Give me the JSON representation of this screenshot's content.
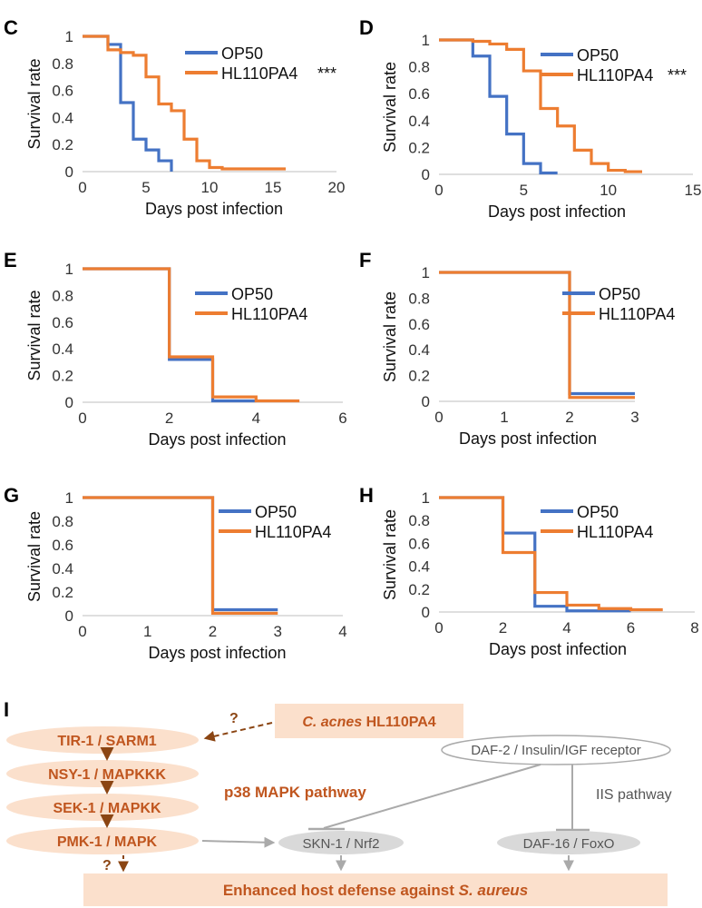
{
  "colors": {
    "OP50": "#4472c4",
    "HL110PA4": "#ed7d31",
    "pathway_fill": "#fbe0cc",
    "pathway_text": "#c0561f",
    "arrow": "#8b4513",
    "iis_gray": "#aaaaaa"
  },
  "chart_data": [
    {
      "panel": "C",
      "type": "line",
      "step": true,
      "xlabel": "Days post infection",
      "ylabel": "Survival rate",
      "xlim": [
        0,
        20
      ],
      "xticks": [
        "0",
        "5",
        "10",
        "15",
        "20"
      ],
      "ylim": [
        0,
        1
      ],
      "yticks": [
        "0",
        "0.2",
        "0.4",
        "0.6",
        "0.8",
        "1"
      ],
      "legend": "top-right",
      "significance": "***",
      "series": [
        {
          "name": "OP50",
          "x": [
            0,
            2,
            3,
            4,
            5,
            6,
            7
          ],
          "y": [
            1,
            0.94,
            0.51,
            0.24,
            0.16,
            0.08,
            0
          ]
        },
        {
          "name": "HL110PA4",
          "x": [
            0,
            2,
            3,
            4,
            5,
            6,
            7,
            8,
            9,
            10,
            11,
            16
          ],
          "y": [
            1,
            0.9,
            0.88,
            0.86,
            0.7,
            0.5,
            0.45,
            0.24,
            0.08,
            0.03,
            0.02,
            0.02
          ]
        }
      ]
    },
    {
      "panel": "D",
      "type": "line",
      "step": true,
      "xlabel": "Days post infection",
      "ylabel": "Survival rate",
      "xlim": [
        0,
        15
      ],
      "xticks": [
        "0",
        "5",
        "10",
        "15"
      ],
      "ylim": [
        0,
        1
      ],
      "yticks": [
        "0",
        "0.2",
        "0.4",
        "0.6",
        "0.8",
        "1"
      ],
      "legend": "top-right",
      "significance": "***",
      "series": [
        {
          "name": "OP50",
          "x": [
            0,
            2,
            3,
            4,
            5,
            6,
            7
          ],
          "y": [
            1,
            0.88,
            0.58,
            0.3,
            0.08,
            0.01,
            0.01
          ]
        },
        {
          "name": "HL110PA4",
          "x": [
            0,
            2,
            3,
            4,
            5,
            6,
            7,
            8,
            9,
            10,
            11,
            12
          ],
          "y": [
            1,
            0.99,
            0.97,
            0.93,
            0.77,
            0.49,
            0.36,
            0.18,
            0.08,
            0.03,
            0.02,
            0.02
          ]
        }
      ]
    },
    {
      "panel": "E",
      "type": "line",
      "step": true,
      "xlabel": "Days post infection",
      "ylabel": "Survival rate",
      "xlim": [
        0,
        6
      ],
      "xticks": [
        "0",
        "2",
        "4",
        "6"
      ],
      "ylim": [
        0,
        1
      ],
      "yticks": [
        "0",
        "0.2",
        "0.4",
        "0.6",
        "0.8",
        "1"
      ],
      "legend": "top-right",
      "series": [
        {
          "name": "OP50",
          "x": [
            0,
            2,
            3,
            4
          ],
          "y": [
            1,
            0.32,
            0.01,
            0.01
          ]
        },
        {
          "name": "HL110PA4",
          "x": [
            0,
            2,
            3,
            4,
            5
          ],
          "y": [
            1,
            0.34,
            0.04,
            0.01,
            0.01
          ]
        }
      ]
    },
    {
      "panel": "F",
      "type": "line",
      "step": true,
      "xlabel": "Days post infection",
      "ylabel": "Survival rate",
      "xlim": [
        0,
        3
      ],
      "xticks": [
        "0",
        "1",
        "2",
        "3"
      ],
      "ylim": [
        0,
        1
      ],
      "yticks": [
        "0",
        "0.2",
        "0.4",
        "0.6",
        "0.8",
        "1"
      ],
      "legend": "top-right",
      "series": [
        {
          "name": "OP50",
          "x": [
            0,
            2,
            3
          ],
          "y": [
            1,
            0.06,
            0.06
          ]
        },
        {
          "name": "HL110PA4",
          "x": [
            0,
            2,
            3
          ],
          "y": [
            1,
            0.03,
            0.03
          ]
        }
      ]
    },
    {
      "panel": "G",
      "type": "line",
      "step": true,
      "xlabel": "Days post infection",
      "ylabel": "Survival rate",
      "xlim": [
        0,
        4
      ],
      "xticks": [
        "0",
        "1",
        "2",
        "3",
        "4"
      ],
      "ylim": [
        0,
        1
      ],
      "yticks": [
        "0",
        "0.2",
        "0.4",
        "0.6",
        "0.8",
        "1"
      ],
      "legend": "top-right",
      "series": [
        {
          "name": "OP50",
          "x": [
            0,
            2,
            3
          ],
          "y": [
            1,
            0.05,
            0.05
          ]
        },
        {
          "name": "HL110PA4",
          "x": [
            0,
            2,
            3
          ],
          "y": [
            1,
            0.02,
            0.02
          ]
        }
      ]
    },
    {
      "panel": "H",
      "type": "line",
      "step": true,
      "xlabel": "Days post infection",
      "ylabel": "Survival rate",
      "xlim": [
        0,
        8
      ],
      "xticks": [
        "0",
        "2",
        "4",
        "6",
        "8"
      ],
      "ylim": [
        0,
        1
      ],
      "yticks": [
        "0",
        "0.2",
        "0.4",
        "0.6",
        "0.8",
        "1"
      ],
      "legend": "top-right",
      "series": [
        {
          "name": "OP50",
          "x": [
            0,
            2,
            3,
            4,
            6
          ],
          "y": [
            1,
            0.69,
            0.05,
            0.01,
            0.01
          ]
        },
        {
          "name": "HL110PA4",
          "x": [
            0,
            2,
            3,
            4,
            5,
            6,
            7
          ],
          "y": [
            1,
            0.52,
            0.17,
            0.06,
            0.03,
            0.02,
            0.02
          ]
        }
      ]
    }
  ],
  "diagram": {
    "panel": "I",
    "source_prefix": "C. acnes",
    "source_suffix": " HL110PA4",
    "chain": [
      "TIR-1 / SARM1",
      "NSY-1 / MAPKKK",
      "SEK-1 / MAPKK",
      "PMK-1 / MAPK"
    ],
    "p38_label": "p38 MAPK pathway",
    "receptor": "DAF-2 / Insulin/IGF receptor",
    "iis_label": "IIS pathway",
    "skn1": "SKN-1 / Nrf2",
    "daf16": "DAF-16 / FoxO",
    "outcome_prefix": "Enhanced host defense against ",
    "outcome_species": "S. aureus",
    "unknown_mark": "?"
  }
}
